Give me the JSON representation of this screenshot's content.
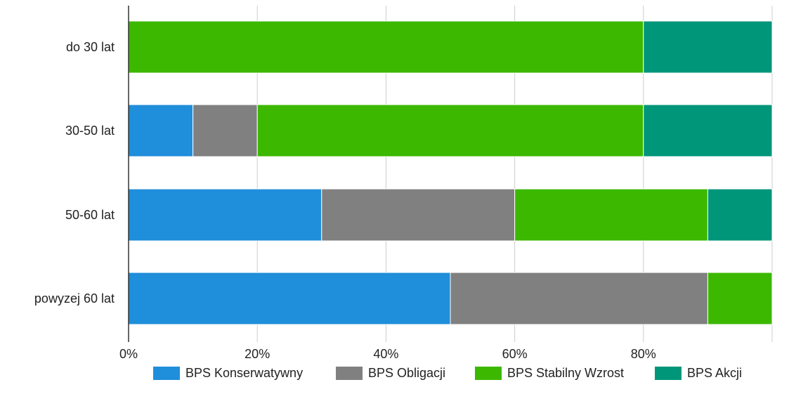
{
  "chart_data": {
    "type": "bar",
    "orientation": "horizontal",
    "stacked": true,
    "categories": [
      "do 30 lat",
      "30-50 lat",
      "50-60 lat",
      "powyzej 60 lat"
    ],
    "series": [
      {
        "name": "BPS Konserwatywny",
        "color": "#1f8edb",
        "values": [
          0,
          10,
          30,
          50
        ]
      },
      {
        "name": "BPS Obligacji",
        "color": "#808080",
        "values": [
          0,
          10,
          30,
          40
        ]
      },
      {
        "name": "BPS Stabilny Wzrost",
        "color": "#3cb800",
        "values": [
          80,
          60,
          30,
          10
        ]
      },
      {
        "name": "BPS Akcji",
        "color": "#00967a",
        "values": [
          20,
          20,
          10,
          0
        ]
      }
    ],
    "x_ticks": [
      "0%",
      "20%",
      "40%",
      "60%",
      "80%"
    ],
    "xlim": [
      0,
      100
    ],
    "grid": true,
    "legend_position": "bottom"
  }
}
